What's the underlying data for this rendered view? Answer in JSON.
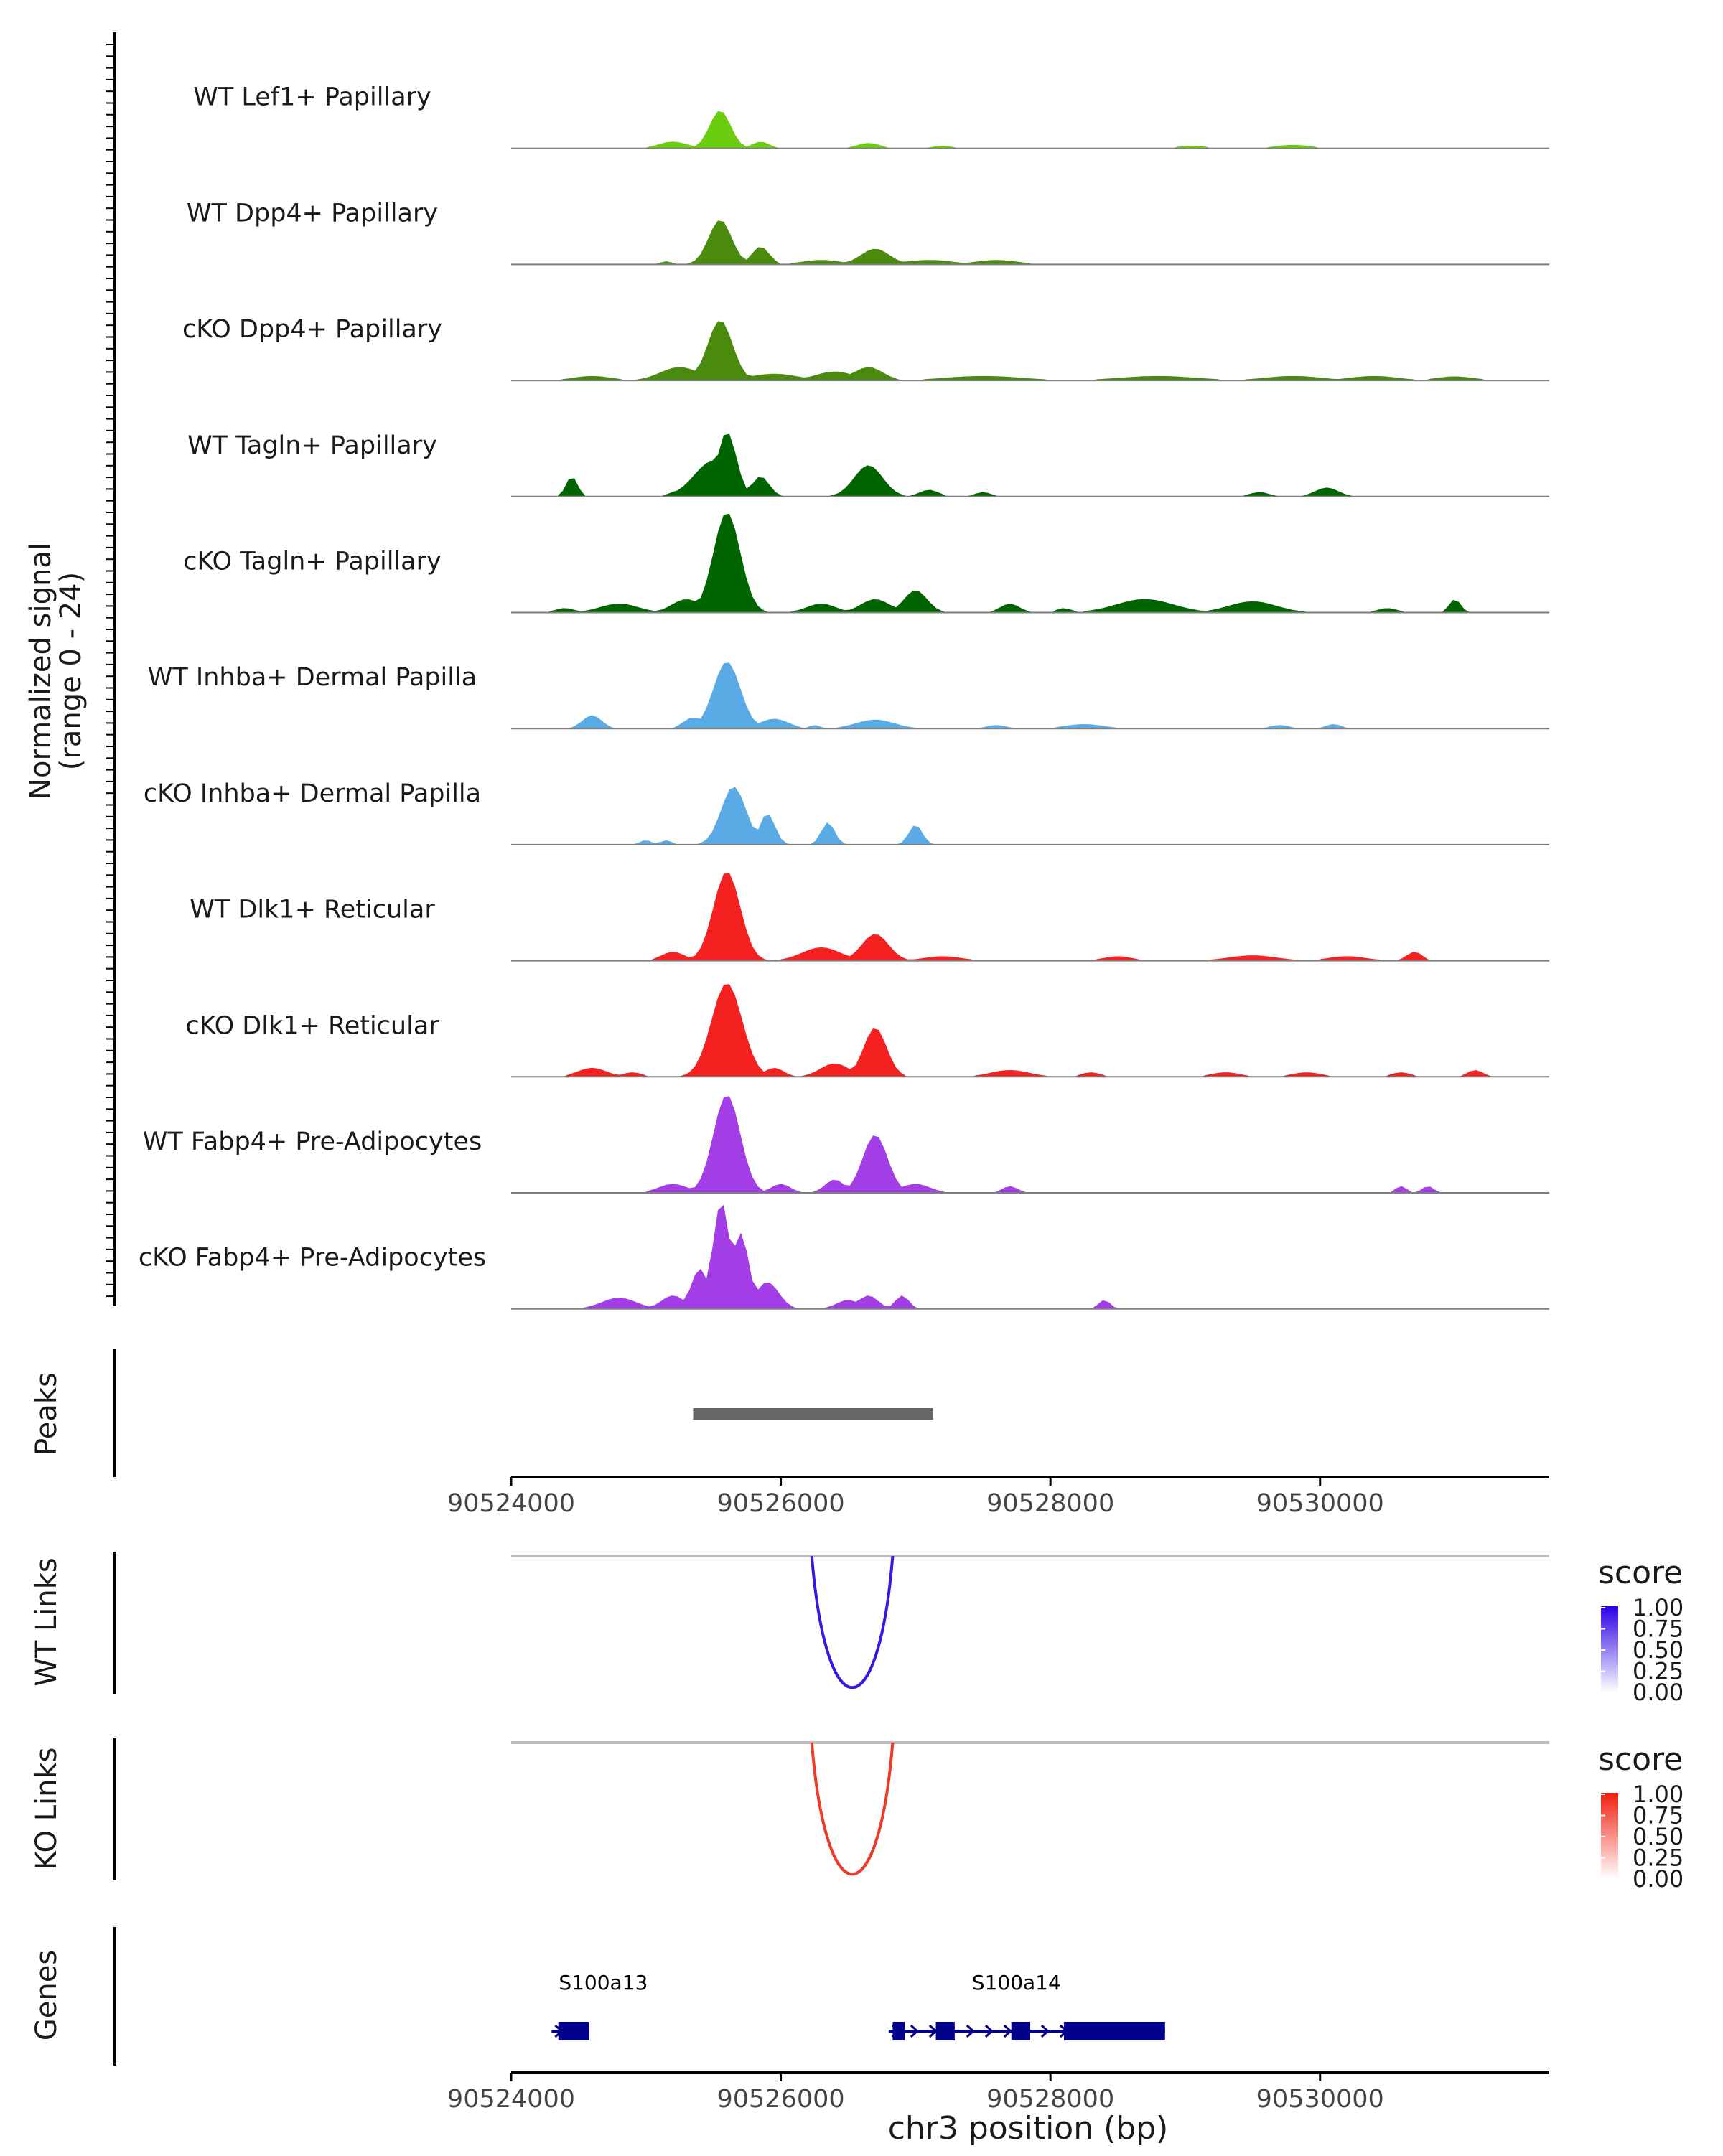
{
  "chart_data": {
    "type": "area",
    "title": "",
    "region": {
      "chrom": "chr3",
      "start": 90524000,
      "end": 90531700
    },
    "signal_axis": {
      "label": "Normalized signal",
      "range_label": "(range 0 - 24)",
      "ylim": [
        0,
        24
      ]
    },
    "tracks": [
      {
        "name": "WT Lef1+ Papillary",
        "color": "#6ACD10",
        "peaks": [
          [
            90525200,
            1.5,
            150
          ],
          [
            90525550,
            8.5,
            110
          ],
          [
            90525850,
            1.5,
            90
          ],
          [
            90526650,
            1.2,
            120
          ],
          [
            90527200,
            0.6,
            100
          ],
          [
            90529050,
            0.6,
            150
          ],
          [
            90529800,
            0.8,
            180
          ]
        ]
      },
      {
        "name": "WT Dpp4+ Papillary",
        "color": "#4A8A0C",
        "peaks": [
          [
            90525550,
            10,
            120
          ],
          [
            90525850,
            4,
            90
          ],
          [
            90526700,
            3.5,
            150
          ],
          [
            90526300,
            1,
            200
          ],
          [
            90527100,
            1,
            250
          ],
          [
            90527600,
            1,
            220
          ],
          [
            90525150,
            0.7,
            60
          ]
        ]
      },
      {
        "name": "cKO Dpp4+ Papillary",
        "color": "#4A8A0C",
        "peaks": [
          [
            90525550,
            13.5,
            130
          ],
          [
            90525250,
            3,
            200
          ],
          [
            90525950,
            1.5,
            250
          ],
          [
            90526400,
            2,
            200
          ],
          [
            90526650,
            3,
            150
          ],
          [
            90524600,
            1,
            200
          ],
          [
            90527500,
            1,
            400
          ],
          [
            90528800,
            1,
            400
          ],
          [
            90529800,
            1,
            300
          ],
          [
            90530400,
            1,
            250
          ],
          [
            90531000,
            0.9,
            200
          ]
        ]
      },
      {
        "name": "WT Tagln+ Papillary",
        "color": "#006400",
        "peaks": [
          [
            90524450,
            4.5,
            60
          ],
          [
            90525500,
            8,
            200
          ],
          [
            90525600,
            14.5,
            100
          ],
          [
            90525850,
            4.5,
            90
          ],
          [
            90526650,
            7,
            150
          ],
          [
            90527100,
            1.5,
            100
          ],
          [
            90527500,
            1,
            80
          ],
          [
            90529550,
            1,
            100
          ],
          [
            90530050,
            2,
            120
          ],
          [
            90525200,
            1,
            60
          ]
        ]
      },
      {
        "name": "cKO Tagln+ Papillary",
        "color": "#006400",
        "peaks": [
          [
            90525600,
            22.5,
            140
          ],
          [
            90525300,
            3,
            150
          ],
          [
            90524800,
            2,
            200
          ],
          [
            90526300,
            2,
            150
          ],
          [
            90526700,
            3,
            150
          ],
          [
            90527000,
            5,
            120
          ],
          [
            90527700,
            2,
            100
          ],
          [
            90528100,
            1,
            80
          ],
          [
            90528700,
            3,
            300
          ],
          [
            90529500,
            2.5,
            250
          ],
          [
            90530500,
            1,
            100
          ],
          [
            90531000,
            3,
            60
          ],
          [
            90524400,
            1,
            100
          ]
        ]
      },
      {
        "name": "WT Inhba+ Dermal Papilla",
        "color": "#5AAAE6",
        "peaks": [
          [
            90525600,
            15,
            140
          ],
          [
            90525350,
            2.5,
            100
          ],
          [
            90525950,
            2.2,
            150
          ],
          [
            90524600,
            3,
            100
          ],
          [
            90526700,
            2,
            200
          ],
          [
            90527600,
            0.8,
            100
          ],
          [
            90528250,
            1,
            200
          ],
          [
            90529700,
            0.8,
            100
          ],
          [
            90530100,
            1,
            80
          ],
          [
            90526250,
            0.8,
            60
          ]
        ]
      },
      {
        "name": "cKO Inhba+ Dermal Papilla",
        "color": "#5AAAE6",
        "peaks": [
          [
            90525650,
            13,
            130
          ],
          [
            90525900,
            7,
            80
          ],
          [
            90526350,
            5,
            70
          ],
          [
            90527000,
            4.5,
            70
          ],
          [
            90525000,
            1,
            60
          ],
          [
            90525150,
            1,
            60
          ]
        ]
      },
      {
        "name": "WT Dlk1+ Reticular",
        "color": "#F52020",
        "peaks": [
          [
            90525600,
            20,
            140
          ],
          [
            90526700,
            6,
            140
          ],
          [
            90526300,
            3,
            200
          ],
          [
            90525200,
            2,
            120
          ],
          [
            90527200,
            1,
            200
          ],
          [
            90529500,
            1.2,
            250
          ],
          [
            90530200,
            1,
            200
          ],
          [
            90530700,
            2,
            80
          ],
          [
            90528500,
            1,
            150
          ]
        ]
      },
      {
        "name": "cKO Dlk1+ Reticular",
        "color": "#F52020",
        "peaks": [
          [
            90525600,
            21,
            160
          ],
          [
            90526700,
            11,
            120
          ],
          [
            90526400,
            3,
            150
          ],
          [
            90524600,
            2,
            150
          ],
          [
            90524900,
            1,
            100
          ],
          [
            90527700,
            1.5,
            200
          ],
          [
            90528300,
            1,
            100
          ],
          [
            90529300,
            1,
            150
          ],
          [
            90529900,
            1,
            150
          ],
          [
            90530600,
            1,
            100
          ],
          [
            90531150,
            1.5,
            80
          ],
          [
            90525950,
            2,
            100
          ]
        ]
      },
      {
        "name": "WT Fabp4+ Pre-Adipocytes",
        "color": "#A33EE6",
        "peaks": [
          [
            90525600,
            22,
            140
          ],
          [
            90526700,
            13,
            130
          ],
          [
            90526400,
            3,
            100
          ],
          [
            90525200,
            2,
            150
          ],
          [
            90527000,
            2,
            150
          ],
          [
            90527700,
            1.5,
            80
          ],
          [
            90530600,
            1.5,
            60
          ],
          [
            90530800,
            1.5,
            60
          ],
          [
            90526000,
            2,
            100
          ]
        ]
      },
      {
        "name": "cKO Fabp4+ Pre-Adipocytes",
        "color": "#A33EE6",
        "peaks": [
          [
            90525560,
            24,
            90
          ],
          [
            90525700,
            17,
            90
          ],
          [
            90525400,
            9,
            90
          ],
          [
            90525900,
            6,
            120
          ],
          [
            90525200,
            3,
            120
          ],
          [
            90524800,
            2.5,
            180
          ],
          [
            90526500,
            2,
            120
          ],
          [
            90526650,
            3,
            100
          ],
          [
            90526900,
            3,
            70
          ],
          [
            90528400,
            2,
            60
          ]
        ]
      }
    ],
    "peaks_track": {
      "label": "Peaks",
      "regions": [
        [
          90525350,
          90527130
        ]
      ]
    },
    "position_axis": {
      "ticks": [
        90524000,
        90526000,
        90528000,
        90530000
      ],
      "tick_labels": [
        "90524000",
        "90526000",
        "90528000",
        "90530000"
      ],
      "xlabel": "chr3 position (bp)"
    },
    "links": [
      {
        "label": "WT Links",
        "start": 90526230,
        "end": 90526830,
        "score": 1.0,
        "color": "#3A17E2",
        "legend": {
          "title": "score",
          "ticks": [
            "1.00",
            "0.75",
            "0.50",
            "0.25",
            "0.00"
          ],
          "color_high": "#2C00E6",
          "color_low": "#FFFFFF"
        }
      },
      {
        "label": "KO Links",
        "start": 90526230,
        "end": 90526830,
        "score": 1.0,
        "color": "#EE3A2A",
        "legend": {
          "title": "score",
          "ticks": [
            "1.00",
            "0.75",
            "0.50",
            "0.25",
            "0.00"
          ],
          "color_high": "#F02010",
          "color_low": "#FFFFFF"
        }
      }
    ],
    "genes_track": {
      "label": "Genes",
      "color": "#00008B",
      "genes": [
        {
          "name": "S100a13",
          "start": 90524300,
          "end": 90524580,
          "exons": [
            [
              90524350,
              90524580
            ]
          ]
        },
        {
          "name": "S100a14",
          "start": 90526800,
          "end": 90528850,
          "exons": [
            [
              90526830,
              90526920
            ],
            [
              90527150,
              90527290
            ],
            [
              90527710,
              90527850
            ],
            [
              90528100,
              90528850
            ]
          ]
        }
      ]
    }
  }
}
